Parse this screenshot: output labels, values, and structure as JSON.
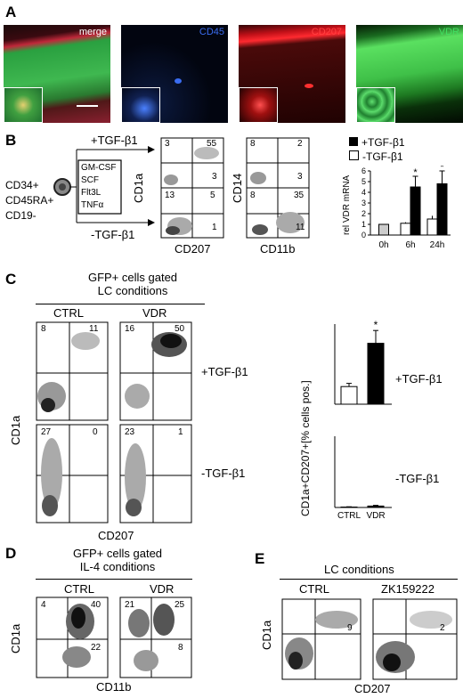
{
  "panel_a": {
    "label": "A",
    "images": [
      {
        "label": "merge",
        "color": "#ffffff"
      },
      {
        "label": "CD45",
        "color": "#3a6cf0"
      },
      {
        "label": "CD207",
        "color": "#ff3030"
      },
      {
        "label": "VDR",
        "color": "#30d040"
      }
    ]
  },
  "panel_b": {
    "label": "B",
    "cells_text": [
      "CD34+",
      "CD45RA+",
      "CD19-"
    ],
    "cytokines": [
      "GM-CSF",
      "SCF",
      "Flt3L",
      "TNFα"
    ],
    "plus_tgf": "+TGF-β1",
    "minus_tgf": "-TGF-β1",
    "plot1": {
      "ylabel": "CD1a",
      "xlabel": "CD207",
      "top": [
        "3",
        "55",
        "3"
      ],
      "bottom": [
        "13",
        "5",
        "1"
      ]
    },
    "plot2": {
      "ylabel": "CD14",
      "xlabel": "CD11b",
      "top": [
        "8",
        "2",
        "3"
      ],
      "bottom": [
        "8",
        "35",
        "11"
      ]
    },
    "bar_legend": [
      "+TGF-β1",
      "-TGF-β1"
    ]
  },
  "panel_c": {
    "label": "C",
    "gate_title": "GFP+ cells gated",
    "gate_sub": "LC conditions",
    "col_ctrl": "CTRL",
    "col_vdr": "VDR",
    "row_plus": "+TGF-β1",
    "row_minus": "-TGF-β1",
    "ylabel": "CD1a",
    "xlabel": "CD207",
    "quads": {
      "ctrl_plus": [
        "8",
        "11"
      ],
      "vdr_plus": [
        "16",
        "50"
      ],
      "ctrl_minus": [
        "27",
        "0"
      ],
      "vdr_minus": [
        "23",
        "1"
      ]
    },
    "bar_ylabel": "CD1a+CD207+[% cells pos.]",
    "star": "*"
  },
  "panel_d": {
    "label": "D",
    "gate_title": "GFP+ cells gated",
    "gate_sub": "IL-4 conditions",
    "col_ctrl": "CTRL",
    "col_vdr": "VDR",
    "ylabel": "CD1a",
    "xlabel": "CD11b",
    "ctrl": [
      "4",
      "40",
      "22"
    ],
    "vdr": [
      "21",
      "25",
      "8"
    ]
  },
  "panel_e": {
    "label": "E",
    "title": "LC conditions",
    "col_ctrl": "CTRL",
    "col_zk": "ZK159222",
    "ylabel": "CD1a",
    "xlabel": "CD207",
    "ctrl": [
      "9"
    ],
    "zk": [
      "2"
    ]
  },
  "chart_data": [
    {
      "type": "bar",
      "ylabel": "rel VDR mRNA",
      "categories": [
        "0h",
        "6h",
        "24h"
      ],
      "series": [
        {
          "name": "+TGF-β1",
          "values": [
            null,
            4.5,
            4.8
          ],
          "errors": [
            null,
            1.0,
            1.2
          ]
        },
        {
          "name": "-TGF-β1",
          "values": [
            1.0,
            1.1,
            1.5
          ],
          "errors": [
            0.1,
            0.1,
            0.3
          ]
        }
      ],
      "ylim": [
        0,
        6
      ],
      "yticks": [
        0,
        1,
        2,
        3,
        4,
        5,
        6
      ],
      "annotations": [
        "*",
        "*"
      ]
    },
    {
      "type": "bar",
      "ylabel": "CD1a+CD207+[% cells pos.]",
      "row": "+TGF-β1",
      "categories": [
        "CTRL",
        "VDR"
      ],
      "values": [
        11,
        38
      ],
      "errors": [
        2,
        8
      ],
      "annotations": [
        "*"
      ]
    },
    {
      "type": "bar",
      "row": "-TGF-β1",
      "categories": [
        "CTRL",
        "VDR"
      ],
      "values": [
        0.3,
        1.0
      ],
      "errors": [
        0.2,
        0.5
      ]
    }
  ]
}
